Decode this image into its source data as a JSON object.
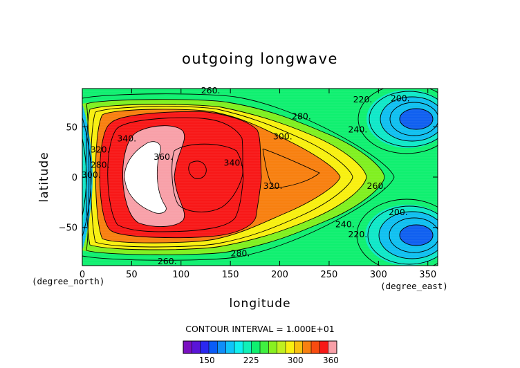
{
  "chart_data": {
    "type": "heatmap",
    "subtype": "filled-contour",
    "title": "outgoing longwave",
    "xlabel": "longitude",
    "ylabel": "latitude",
    "x_units": "(degree_east)",
    "y_units": "(degree_north)",
    "xlim": [
      0,
      360
    ],
    "ylim": [
      -88,
      88
    ],
    "x_ticks": [
      0,
      50,
      100,
      150,
      200,
      250,
      300,
      350
    ],
    "y_ticks": [
      -50,
      0,
      50
    ],
    "contour_interval_text": "CONTOUR INTERVAL = 1.000E+01",
    "contour_interval": 10,
    "contour_levels": [
      200,
      210,
      220,
      230,
      240,
      250,
      260,
      270,
      280,
      290,
      300,
      310,
      320,
      330,
      340,
      350,
      360
    ],
    "contour_labels": [
      {
        "text": "260.",
        "lon": 130,
        "lat": 84
      },
      {
        "text": "220.",
        "lon": 284,
        "lat": 75
      },
      {
        "text": "200.",
        "lon": 322,
        "lat": 76
      },
      {
        "text": "280.",
        "lon": 222,
        "lat": 58
      },
      {
        "text": "240.",
        "lon": 279,
        "lat": 45
      },
      {
        "text": "300.",
        "lon": 203,
        "lat": 38
      },
      {
        "text": "340.",
        "lon": 45,
        "lat": 36
      },
      {
        "text": "320.",
        "lon": 18,
        "lat": 25
      },
      {
        "text": "360.",
        "lon": 82,
        "lat": 18
      },
      {
        "text": "340.",
        "lon": 153,
        "lat": 12
      },
      {
        "text": "280.",
        "lon": 18,
        "lat": 10
      },
      {
        "text": "300.",
        "lon": 9,
        "lat": 0
      },
      {
        "text": "320.",
        "lon": 193,
        "lat": -11
      },
      {
        "text": "260.",
        "lon": 298,
        "lat": -11
      },
      {
        "text": "200.",
        "lon": 320,
        "lat": -37
      },
      {
        "text": "240.",
        "lon": 266,
        "lat": -49
      },
      {
        "text": "220.",
        "lon": 279,
        "lat": -59
      },
      {
        "text": "280.",
        "lon": 160,
        "lat": -78
      },
      {
        "text": "260.",
        "lon": 86,
        "lat": -86
      }
    ],
    "colorbar": {
      "ticks": [
        150,
        225,
        300,
        360
      ],
      "range": [
        110,
        370
      ],
      "colors": [
        "#7a10c0",
        "#5a14d8",
        "#2a28f0",
        "#0a5cf8",
        "#108ef8",
        "#10c4f8",
        "#10f0f0",
        "#10f0b8",
        "#10f070",
        "#40f040",
        "#88f020",
        "#c0f020",
        "#f8f010",
        "#f8c010",
        "#f88010",
        "#f84c10",
        "#f81818",
        "#f8a0a8"
      ]
    },
    "fill_colors": {
      "below_200": "#1060f0",
      "200_220": "#10c0f0",
      "220_240": "#10e8c8",
      "240_260": "#10f070",
      "260_280": "#80f020",
      "280_300": "#f8f010",
      "300_320": "#f88010",
      "320_360": "#f81818",
      "360_370": "#f8a0a8",
      "above_370": "#ffffff"
    }
  }
}
